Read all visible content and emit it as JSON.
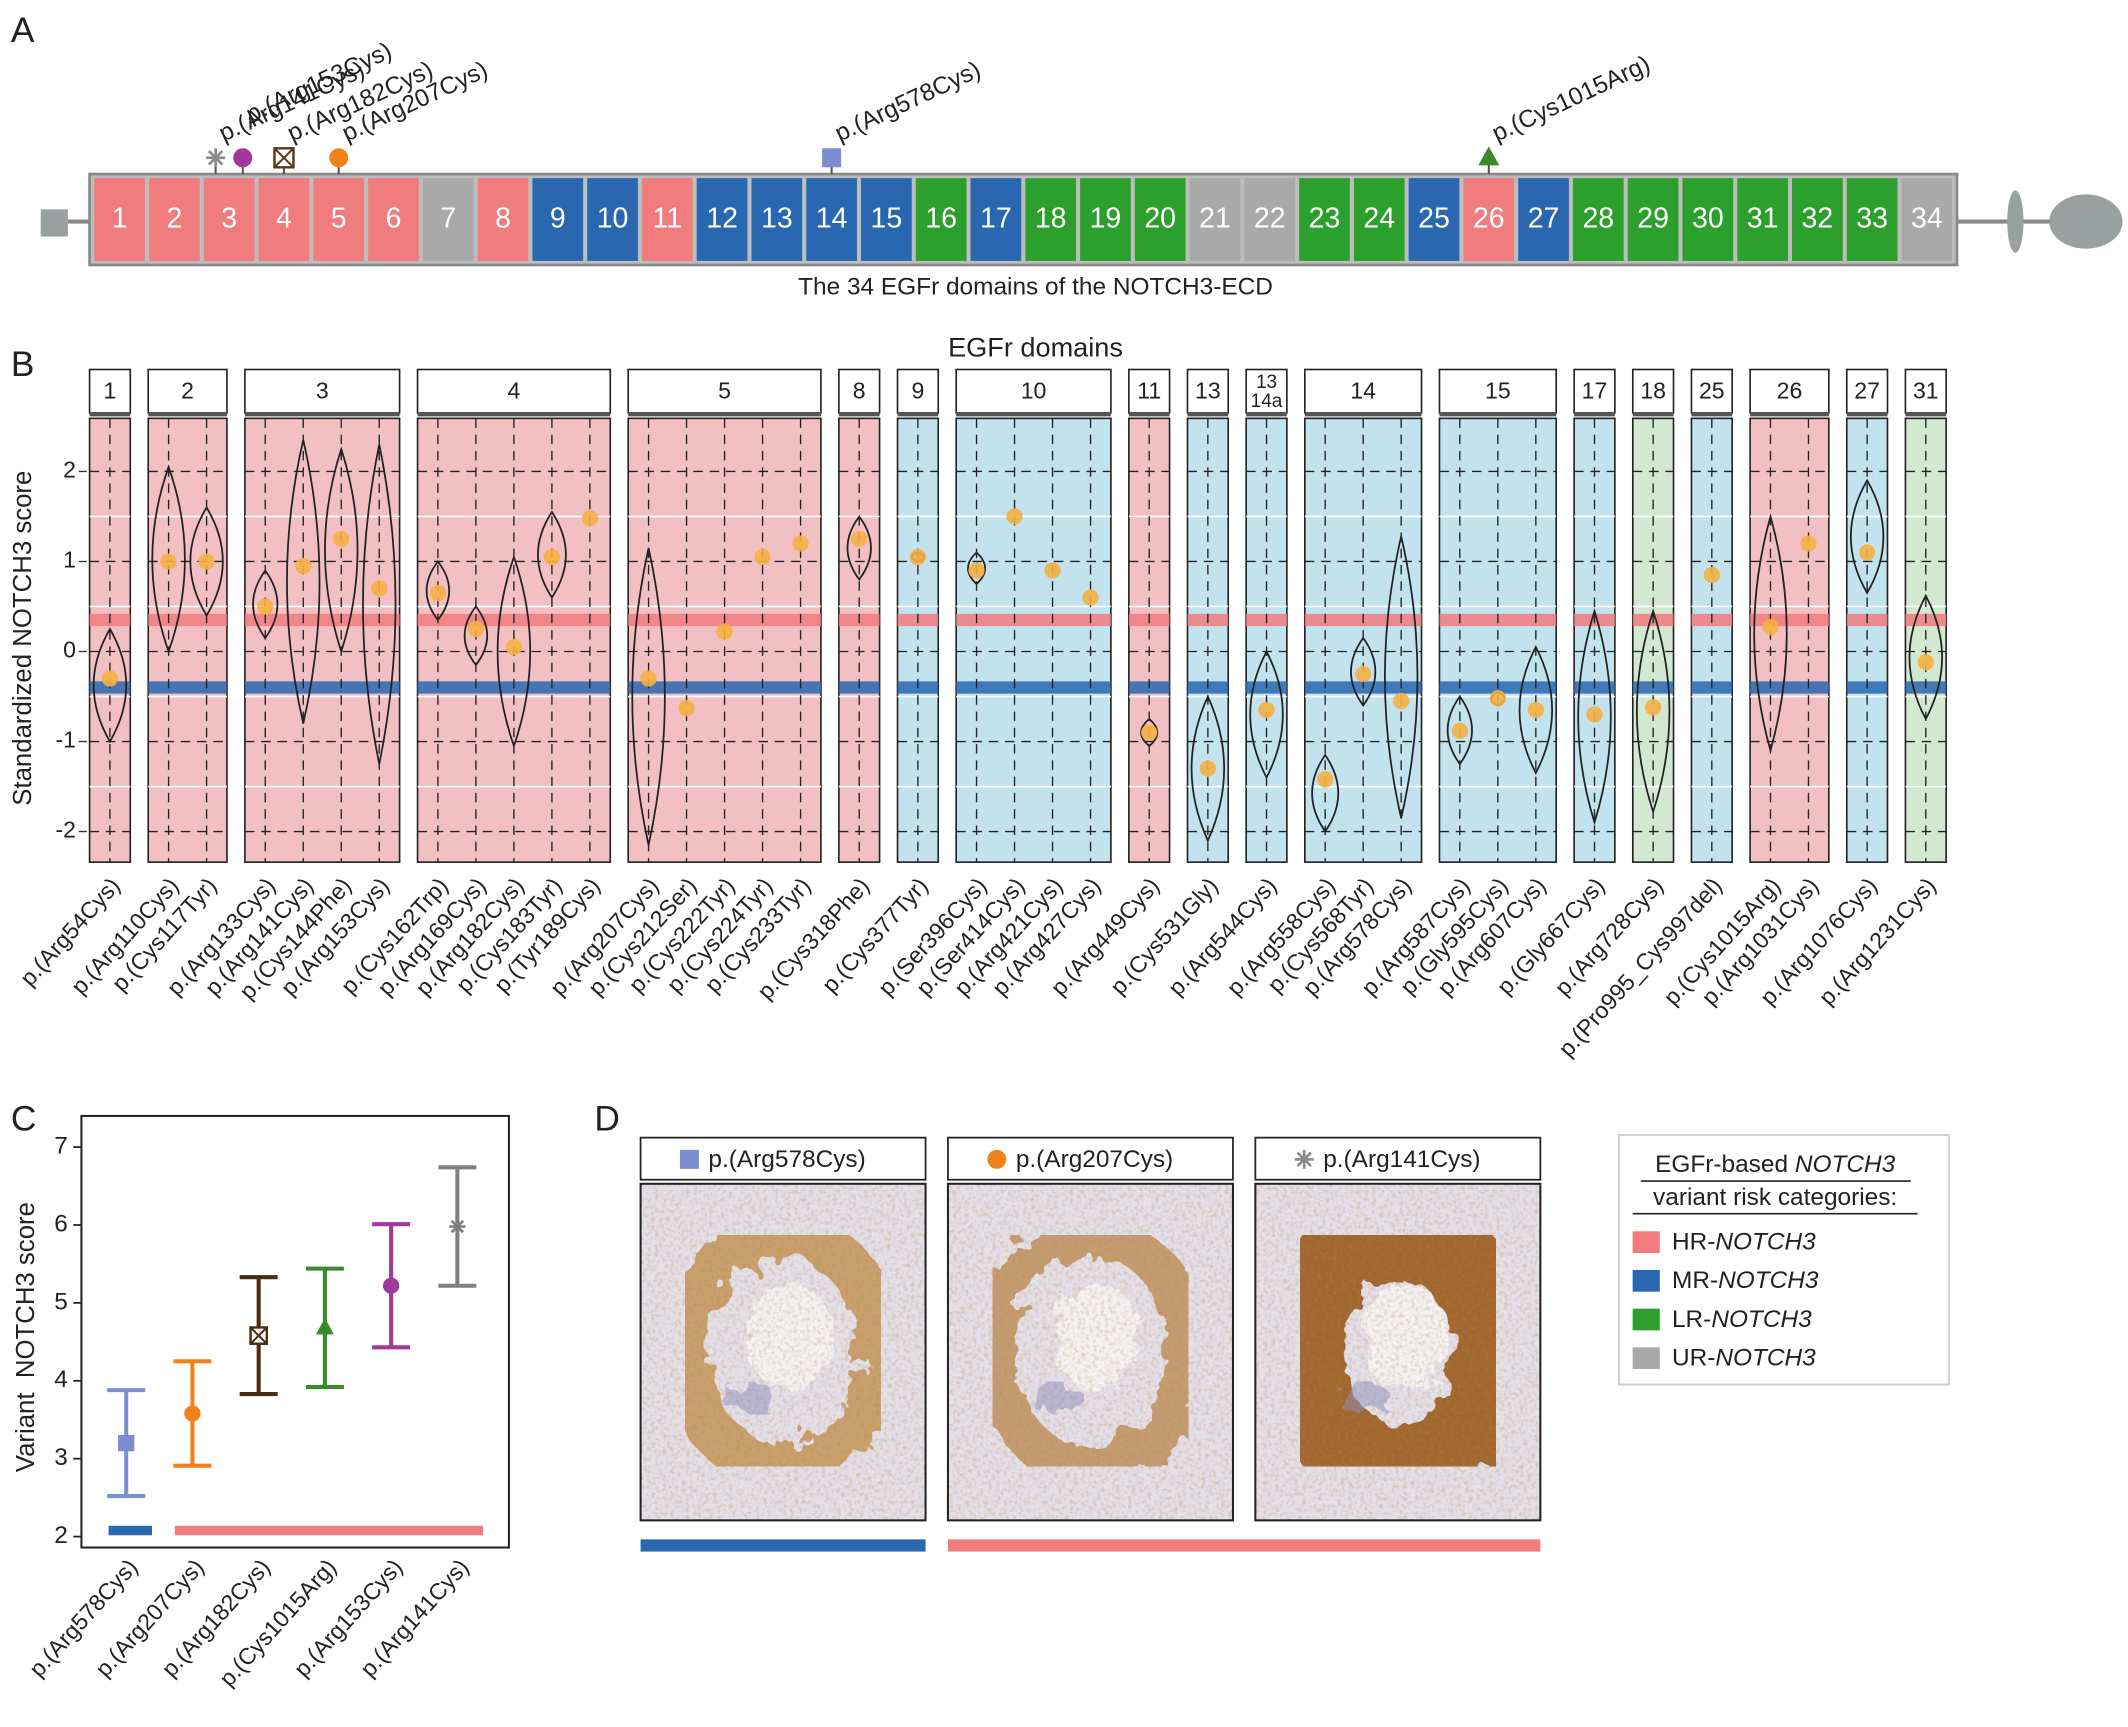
{
  "panels": {
    "a": "A",
    "b": "B",
    "c": "C",
    "d": "D"
  },
  "risk_colors": {
    "HR": "#f07c7e",
    "MR": "#2a67b1",
    "LR": "#2ca02c",
    "UR": "#a9a9a9"
  },
  "facet_colors": {
    "HR": "#f2c0c3",
    "MR": "#c2e2ee",
    "LR": "#d3e8d0"
  },
  "domain_map": {
    "caption": "The 34 EGFr domains of the NOTCH3-ECD",
    "domains": [
      {
        "label": "1",
        "risk": "HR"
      },
      {
        "label": "2",
        "risk": "HR"
      },
      {
        "label": "3",
        "risk": "HR"
      },
      {
        "label": "4",
        "risk": "HR"
      },
      {
        "label": "5",
        "risk": "HR"
      },
      {
        "label": "6",
        "risk": "HR"
      },
      {
        "label": "7",
        "risk": "UR"
      },
      {
        "label": "8",
        "risk": "HR"
      },
      {
        "label": "9",
        "risk": "MR"
      },
      {
        "label": "10",
        "risk": "MR"
      },
      {
        "label": "11",
        "risk": "HR"
      },
      {
        "label": "12",
        "risk": "MR"
      },
      {
        "label": "13",
        "risk": "MR"
      },
      {
        "label": "14",
        "risk": "MR"
      },
      {
        "label": "15",
        "risk": "MR"
      },
      {
        "label": "16",
        "risk": "LR"
      },
      {
        "label": "17",
        "risk": "MR"
      },
      {
        "label": "18",
        "risk": "LR"
      },
      {
        "label": "19",
        "risk": "LR"
      },
      {
        "label": "20",
        "risk": "LR"
      },
      {
        "label": "21",
        "risk": "UR"
      },
      {
        "label": "22",
        "risk": "UR"
      },
      {
        "label": "23",
        "risk": "LR"
      },
      {
        "label": "24",
        "risk": "LR"
      },
      {
        "label": "25",
        "risk": "MR"
      },
      {
        "label": "26",
        "risk": "HR"
      },
      {
        "label": "27",
        "risk": "MR"
      },
      {
        "label": "28",
        "risk": "LR"
      },
      {
        "label": "29",
        "risk": "LR"
      },
      {
        "label": "30",
        "risk": "LR"
      },
      {
        "label": "31",
        "risk": "LR"
      },
      {
        "label": "32",
        "risk": "LR"
      },
      {
        "label": "33",
        "risk": "LR"
      },
      {
        "label": "34",
        "risk": "UR"
      }
    ],
    "variants": [
      {
        "label": "p.(Arg141Cys)",
        "domain": "3",
        "marker": "asterisk",
        "color": "#8c8c8c"
      },
      {
        "label": "p.(Arg153Cys)",
        "domain": "3",
        "marker": "circle",
        "color": "#a0389e"
      },
      {
        "label": "p.(Arg182Cys)",
        "domain": "4",
        "marker": "boxx",
        "color": "#5a3a1a"
      },
      {
        "label": "p.(Arg207Cys)",
        "domain": "5",
        "marker": "circle",
        "color": "#f0821e"
      },
      {
        "label": "p.(Arg578Cys)",
        "domain": "14",
        "marker": "square",
        "color": "#7b8fd0"
      },
      {
        "label": "p.(Cys1015Arg)",
        "domain": "26",
        "marker": "triangle",
        "color": "#3a8a2a"
      }
    ]
  },
  "chart_data": [
    {
      "type": "violin",
      "title": "EGFr domains",
      "ylabel": "Standardized NOTCH3 score",
      "ylim": [
        -2.34,
        2.59
      ],
      "yticks": [
        -2,
        -1,
        0,
        1,
        2
      ],
      "grid": true,
      "point_color": "#f5b041",
      "hlines": [
        {
          "value": 0.35,
          "color": "#f07c7e"
        },
        {
          "value": -0.4,
          "color": "#2a67b1"
        }
      ],
      "facets": [
        {
          "label": "1",
          "risk": "HR",
          "categories": [
            "p.(Arg54Cys)"
          ],
          "values": [
            -0.3
          ],
          "min": [
            -1.0
          ],
          "max": [
            0.25
          ]
        },
        {
          "label": "2",
          "risk": "HR",
          "categories": [
            "p.(Arg110Cys)",
            "p.(Cys117Tyr)"
          ],
          "values": [
            1.0,
            1.0
          ],
          "min": [
            0.0,
            0.4
          ],
          "max": [
            2.05,
            1.6
          ]
        },
        {
          "label": "3",
          "risk": "HR",
          "categories": [
            "p.(Arg133Cys)",
            "p.(Arg141Cys)",
            "p.(Cys144Phe)",
            "p.(Arg153Cys)"
          ],
          "values": [
            0.5,
            0.95,
            1.25,
            0.7
          ],
          "min": [
            0.15,
            -0.8,
            0.0,
            -1.25
          ],
          "max": [
            0.9,
            2.35,
            2.25,
            2.3
          ]
        },
        {
          "label": "4",
          "risk": "HR",
          "categories": [
            "p.(Cys162Trp)",
            "p.(Arg169Cys)",
            "p.(Arg182Cys)",
            "p.(Cys183Tyr)",
            "p.(Tyr189Cys)"
          ],
          "values": [
            0.65,
            0.25,
            0.05,
            1.05,
            1.48
          ],
          "min": [
            0.35,
            -0.15,
            -1.05,
            0.6,
            null
          ],
          "max": [
            1.0,
            0.5,
            1.05,
            1.55,
            null
          ]
        },
        {
          "label": "5",
          "risk": "HR",
          "categories": [
            "p.(Arg207Cys)",
            "p.(Cys212Ser)",
            "p.(Cys222Tyr)",
            "p.(Cys224Tyr)",
            "p.(Cys233Tyr)"
          ],
          "values": [
            -0.3,
            -0.63,
            0.22,
            1.05,
            1.2
          ],
          "min": [
            -2.15,
            null,
            null,
            null,
            null
          ],
          "max": [
            1.15,
            null,
            null,
            null,
            null
          ]
        },
        {
          "label": "8",
          "risk": "HR",
          "categories": [
            "p.(Cys318Phe)"
          ],
          "values": [
            1.25
          ],
          "min": [
            0.8
          ],
          "max": [
            1.5
          ]
        },
        {
          "label": "9",
          "risk": "MR",
          "categories": [
            "p.(Cys377Tyr)"
          ],
          "values": [
            1.05
          ],
          "min": [
            1.0
          ],
          "max": [
            1.1
          ]
        },
        {
          "label": "10",
          "risk": "MR",
          "categories": [
            "p.(Ser396Cys)",
            "p.(Ser414Cys)",
            "p.(Arg421Cys)",
            "p.(Arg427Cys)"
          ],
          "values": [
            0.9,
            1.5,
            0.9,
            0.6
          ],
          "min": [
            0.75,
            null,
            null,
            null
          ],
          "max": [
            1.1,
            null,
            null,
            null
          ]
        },
        {
          "label": "11",
          "risk": "HR",
          "categories": [
            "p.(Arg449Cys)"
          ],
          "values": [
            -0.9
          ],
          "min": [
            -1.05
          ],
          "max": [
            -0.75
          ]
        },
        {
          "label": "13",
          "risk": "MR",
          "categories": [
            "p.(Cys531Gly)"
          ],
          "values": [
            -1.3
          ],
          "min": [
            -2.1
          ],
          "max": [
            -0.5
          ]
        },
        {
          "label": [
            "13",
            "14a"
          ],
          "risk": "MR",
          "categories": [
            "p.(Arg544Cys)"
          ],
          "values": [
            -0.65
          ],
          "min": [
            -1.4
          ],
          "max": [
            0.0
          ]
        },
        {
          "label": "14",
          "risk": "MR",
          "categories": [
            "p.(Arg558Cys)",
            "p.(Cys568Tyr)",
            "p.(Arg578Cys)"
          ],
          "values": [
            -1.42,
            -0.25,
            -0.55
          ],
          "min": [
            -2.0,
            -0.6,
            -1.85
          ],
          "max": [
            -1.15,
            0.15,
            1.28
          ]
        },
        {
          "label": "15",
          "risk": "MR",
          "categories": [
            "p.(Arg587Cys)",
            "p.(Gly595Cys)",
            "p.(Arg607Cys)"
          ],
          "values": [
            -0.88,
            -0.52,
            -0.65
          ],
          "min": [
            -1.25,
            -0.6,
            -1.35
          ],
          "max": [
            -0.5,
            -0.45,
            0.05
          ]
        },
        {
          "label": "17",
          "risk": "MR",
          "categories": [
            "p.(Gly667Cys)"
          ],
          "values": [
            -0.7
          ],
          "min": [
            -1.9
          ],
          "max": [
            0.45
          ]
        },
        {
          "label": "18",
          "risk": "LR",
          "categories": [
            "p.(Arg728Cys)"
          ],
          "values": [
            -0.62
          ],
          "min": [
            -1.78
          ],
          "max": [
            0.45
          ]
        },
        {
          "label": "25",
          "risk": "MR",
          "categories": [
            "p.(Pro995_Cys997del)"
          ],
          "values": [
            0.85
          ],
          "min": [
            null
          ],
          "max": [
            null
          ]
        },
        {
          "label": "26",
          "risk": "HR",
          "categories": [
            "p.(Cys1015Arg)",
            "p.(Arg1031Cys)"
          ],
          "values": [
            0.27,
            1.2
          ],
          "min": [
            -1.1,
            null
          ],
          "max": [
            1.5,
            null
          ]
        },
        {
          "label": "27",
          "risk": "MR",
          "categories": [
            "p.(Arg1076Cys)"
          ],
          "values": [
            1.1
          ],
          "min": [
            0.65
          ],
          "max": [
            1.9
          ]
        },
        {
          "label": "31",
          "risk": "LR",
          "categories": [
            "p.(Arg1231Cys)"
          ],
          "values": [
            -0.12
          ],
          "min": [
            -0.75
          ],
          "max": [
            0.62
          ]
        }
      ]
    },
    {
      "type": "errorbar",
      "ylabel": "Variant  NOTCH3 score",
      "ylim": [
        1.86,
        7.4
      ],
      "yticks": [
        2,
        3,
        4,
        5,
        6,
        7
      ],
      "categories": [
        "p.(Arg578Cys)",
        "p.(Arg207Cys)",
        "p.(Arg182Cys)",
        "p.(Cys1015Arg)",
        "p.(Arg153Cys)",
        "p.(Arg141Cys)"
      ],
      "values": [
        3.2,
        3.58,
        4.58,
        4.68,
        5.22,
        5.98
      ],
      "errors": [
        0.68,
        0.67,
        0.75,
        0.76,
        0.79,
        0.76
      ],
      "colors": [
        "#7b8fd0",
        "#f0821e",
        "#4a2c12",
        "#3a8a2a",
        "#a0389e",
        "#808080"
      ],
      "markers": [
        "square",
        "circle",
        "boxx",
        "triangle",
        "circle",
        "asterisk"
      ],
      "bar_colors": [
        "#2a67b1",
        "#f07c7e",
        "#f07c7e",
        "#f07c7e",
        "#f07c7e",
        "#f07c7e"
      ]
    }
  ],
  "images": [
    {
      "label": "p.(Arg578Cys)",
      "marker": "square",
      "color": "#7b8fd0",
      "bar_color": "#2a67b1"
    },
    {
      "label": "p.(Arg207Cys)",
      "marker": "circle",
      "color": "#f0821e",
      "bar_color": "#f07c7e"
    },
    {
      "label": "p.(Arg141Cys)",
      "marker": "asterisk",
      "color": "#8c8c8c",
      "bar_color": "#f07c7e"
    }
  ],
  "legend": {
    "title": [
      "EGFr-based ",
      "NOTCH3",
      "variant risk categories:"
    ],
    "items": [
      {
        "prefix": "HR-",
        "gene": "NOTCH3",
        "risk": "HR"
      },
      {
        "prefix": "MR-",
        "gene": "NOTCH3",
        "risk": "MR"
      },
      {
        "prefix": "LR-",
        "gene": "NOTCH3",
        "risk": "LR"
      },
      {
        "prefix": "UR-",
        "gene": "NOTCH3",
        "risk": "UR"
      }
    ]
  }
}
